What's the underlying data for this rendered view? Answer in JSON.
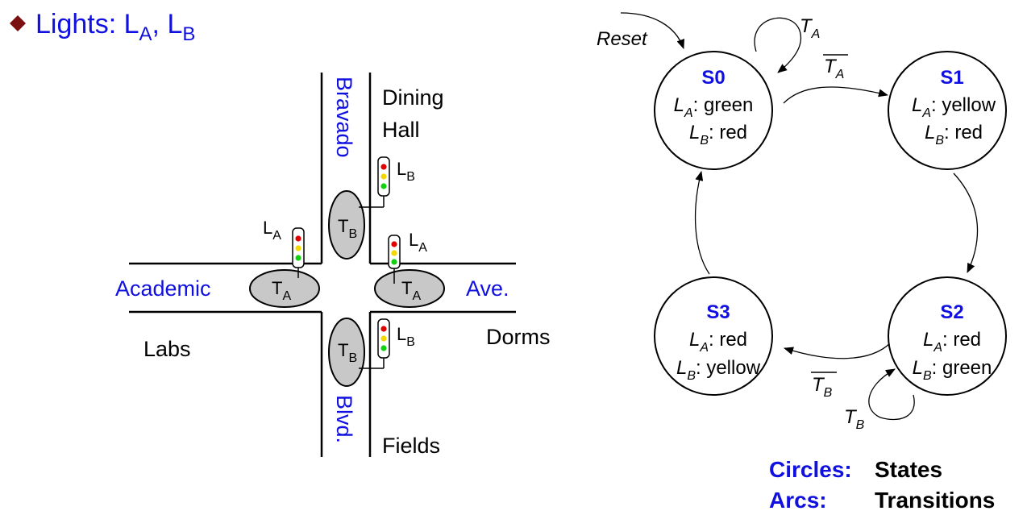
{
  "title": {
    "bullet_color": "#7a1010",
    "text": "Lights: L",
    "sub_a": "A",
    "sep": ", L",
    "sub_b": "B"
  },
  "intersection": {
    "street_bravado": "Bravado",
    "street_blvd": "Blvd.",
    "street_academic": "Academic",
    "street_ave": "Ave.",
    "place_dining_1": "Dining",
    "place_dining_2": "Hall",
    "place_dorms": "Dorms",
    "place_labs": "Labs",
    "place_fields": "Fields",
    "sensor_letter": "T",
    "sensor_a_sub": "A",
    "sensor_b_sub": "B",
    "light_letter": "L",
    "light_a_sub": "A",
    "light_b_sub": "B",
    "colors": {
      "sensor_fill": "#c8c8c8",
      "lamp_red": "#e00000",
      "lamp_yellow": "#f0d800",
      "lamp_green": "#10d010",
      "street_label": "#1010e0"
    }
  },
  "fsm": {
    "reset_label": "Reset",
    "states": [
      {
        "name": "S0",
        "la_key": "L",
        "la_sub": "A",
        "la_value": ": green",
        "lb_key": "L",
        "lb_sub": "B",
        "lb_value": ": red"
      },
      {
        "name": "S1",
        "la_key": "L",
        "la_sub": "A",
        "la_value": ": yellow",
        "lb_key": "L",
        "lb_sub": "B",
        "lb_value": ": red"
      },
      {
        "name": "S2",
        "la_key": "L",
        "la_sub": "A",
        "la_value": ": red",
        "lb_key": "L",
        "lb_sub": "B",
        "lb_value": ": green"
      },
      {
        "name": "S3",
        "la_key": "L",
        "la_sub": "A",
        "la_value": ": red",
        "lb_key": "L",
        "lb_sub": "B",
        "lb_value": ": yellow"
      }
    ],
    "transitions": {
      "s0_self": {
        "var": "T",
        "sub": "A"
      },
      "s0_s1": {
        "var": "T",
        "sub": "A",
        "negated": true
      },
      "s2_s3": {
        "var": "T",
        "sub": "B",
        "negated": true
      },
      "s2_self": {
        "var": "T",
        "sub": "B"
      }
    }
  },
  "legend": {
    "circles_key": "Circles:",
    "circles_value": "States",
    "arcs_key": "Arcs:",
    "arcs_value": "Transitions"
  }
}
